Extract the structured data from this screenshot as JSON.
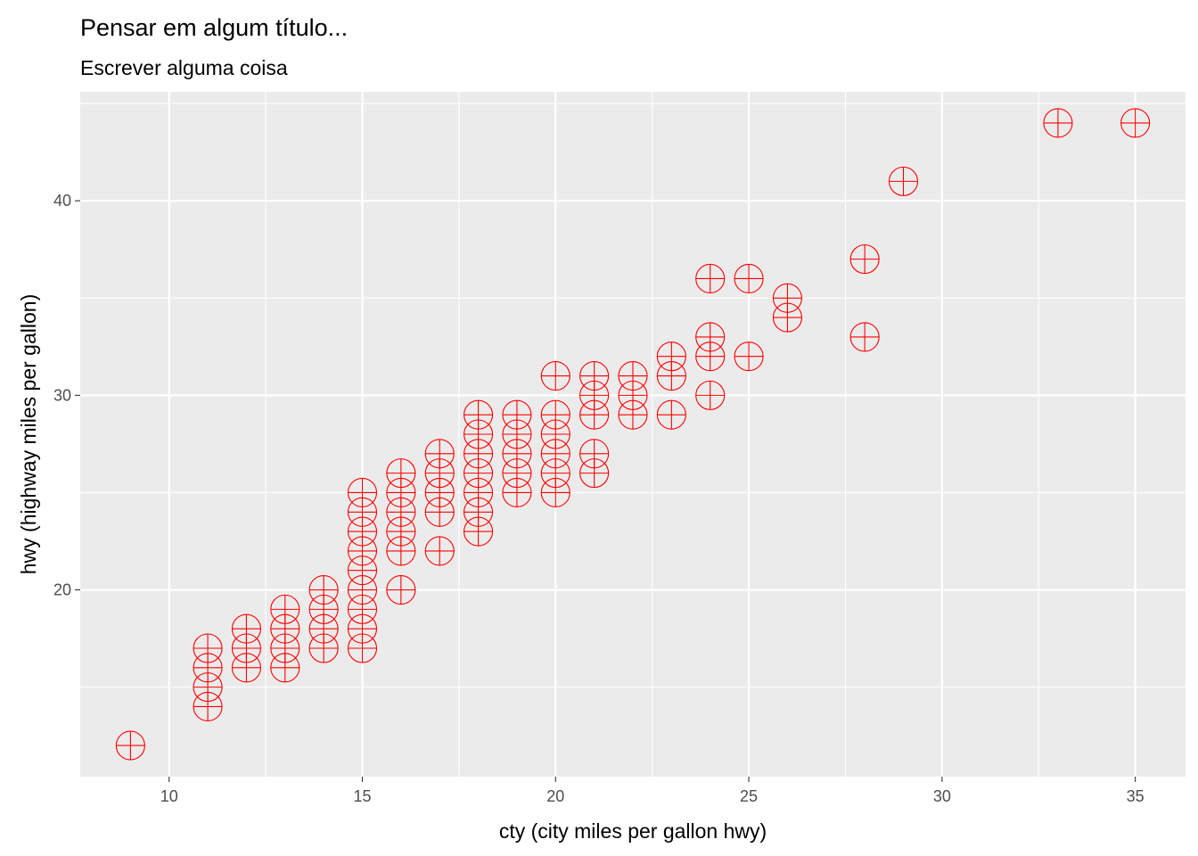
{
  "chart_data": {
    "type": "scatter",
    "title": "Pensar em algum título...",
    "subtitle": "Escrever alguma coisa",
    "xlabel": "cty (city miles per gallon hwy)",
    "ylabel": "hwy (highway miles per gallon)",
    "xlim": [
      7.7,
      36.3
    ],
    "ylim": [
      10.4,
      45.6
    ],
    "x_ticks": [
      10,
      15,
      20,
      25,
      30,
      35
    ],
    "y_ticks": [
      20,
      30,
      40
    ],
    "x_tick_labels": [
      "10",
      "15",
      "20",
      "25",
      "30",
      "35"
    ],
    "y_tick_labels": [
      "20",
      "30",
      "40"
    ],
    "grid": true,
    "legend": "none",
    "panel_background": "#EBEBEB",
    "grid_color": "#FFFFFF",
    "point_color": "#FF0000",
    "point_shape": "circle-plus",
    "series": [
      {
        "points": [
          [
            9,
            12
          ],
          [
            11,
            14
          ],
          [
            11,
            15
          ],
          [
            11,
            16
          ],
          [
            11,
            17
          ],
          [
            12,
            16
          ],
          [
            12,
            17
          ],
          [
            12,
            18
          ],
          [
            13,
            16
          ],
          [
            13,
            17
          ],
          [
            13,
            18
          ],
          [
            13,
            19
          ],
          [
            14,
            17
          ],
          [
            14,
            18
          ],
          [
            14,
            19
          ],
          [
            14,
            20
          ],
          [
            15,
            17
          ],
          [
            15,
            18
          ],
          [
            15,
            19
          ],
          [
            15,
            20
          ],
          [
            15,
            21
          ],
          [
            15,
            22
          ],
          [
            15,
            23
          ],
          [
            15,
            24
          ],
          [
            15,
            25
          ],
          [
            16,
            20
          ],
          [
            16,
            22
          ],
          [
            16,
            23
          ],
          [
            16,
            24
          ],
          [
            16,
            25
          ],
          [
            16,
            26
          ],
          [
            17,
            22
          ],
          [
            17,
            24
          ],
          [
            17,
            25
          ],
          [
            17,
            26
          ],
          [
            17,
            27
          ],
          [
            18,
            23
          ],
          [
            18,
            24
          ],
          [
            18,
            25
          ],
          [
            18,
            26
          ],
          [
            18,
            27
          ],
          [
            18,
            28
          ],
          [
            18,
            29
          ],
          [
            19,
            25
          ],
          [
            19,
            26
          ],
          [
            19,
            27
          ],
          [
            19,
            28
          ],
          [
            19,
            29
          ],
          [
            20,
            25
          ],
          [
            20,
            26
          ],
          [
            20,
            27
          ],
          [
            20,
            28
          ],
          [
            20,
            29
          ],
          [
            20,
            31
          ],
          [
            21,
            26
          ],
          [
            21,
            27
          ],
          [
            21,
            29
          ],
          [
            21,
            30
          ],
          [
            21,
            31
          ],
          [
            22,
            29
          ],
          [
            22,
            30
          ],
          [
            22,
            31
          ],
          [
            23,
            29
          ],
          [
            23,
            31
          ],
          [
            23,
            32
          ],
          [
            24,
            30
          ],
          [
            24,
            32
          ],
          [
            24,
            33
          ],
          [
            24,
            36
          ],
          [
            25,
            32
          ],
          [
            25,
            36
          ],
          [
            26,
            34
          ],
          [
            26,
            35
          ],
          [
            28,
            33
          ],
          [
            28,
            37
          ],
          [
            29,
            41
          ],
          [
            33,
            44
          ],
          [
            35,
            44
          ]
        ]
      }
    ]
  }
}
